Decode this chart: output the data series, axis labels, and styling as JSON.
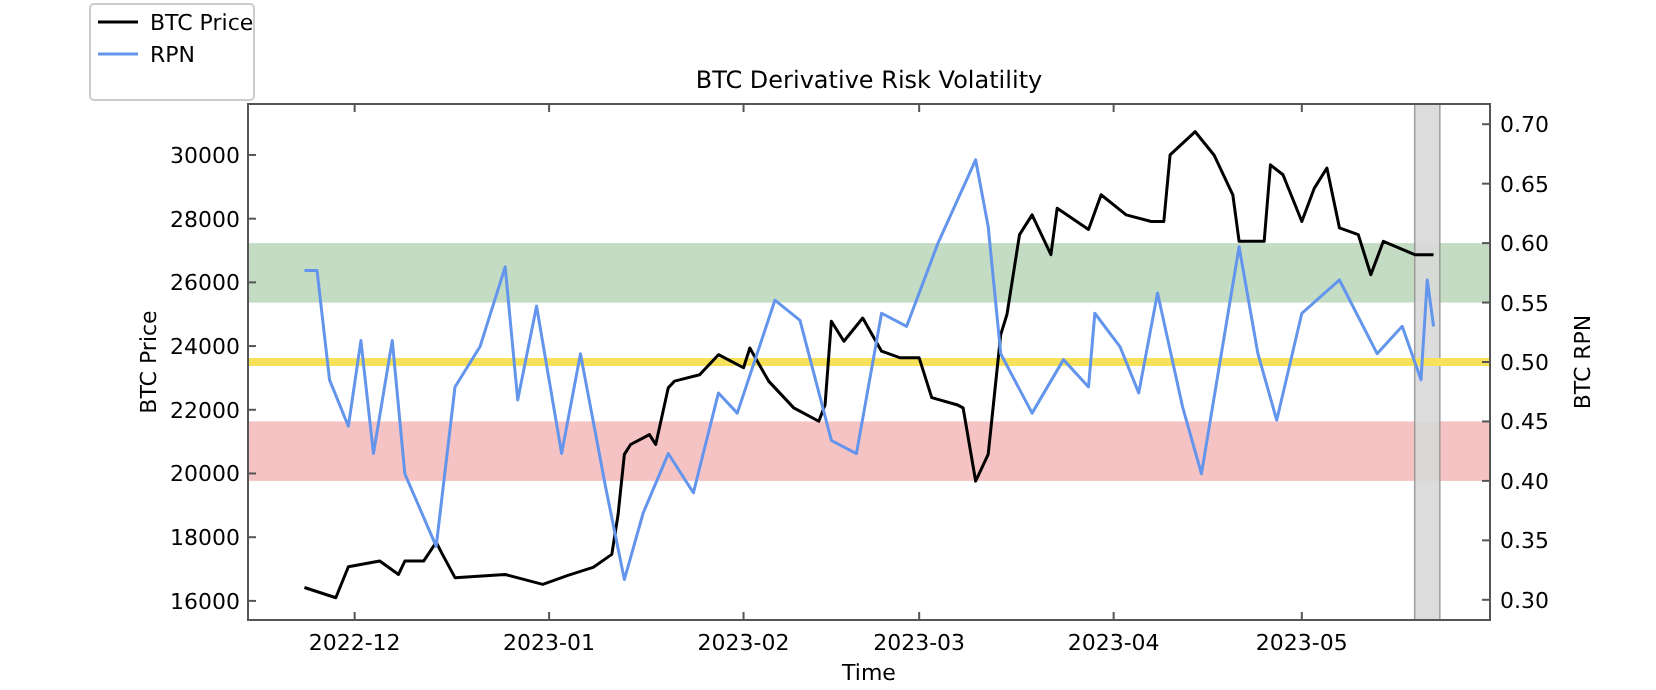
{
  "chart_data": {
    "type": "line",
    "title": "BTC Derivative Risk Volatility",
    "xlabel": "Time",
    "ylabel": "BTC Price",
    "y2label": "BTC RPN",
    "legend": "top left",
    "grid": false,
    "line_style": "solid",
    "xlim": [
      "2022-11-14",
      "2023-05-31"
    ],
    "xticks": [
      {
        "value": "2022-12-01",
        "label": "2022-12"
      },
      {
        "value": "2023-01-01",
        "label": "2023-01"
      },
      {
        "value": "2023-02-01",
        "label": "2023-02"
      },
      {
        "value": "2023-03-01",
        "label": "2023-03"
      },
      {
        "value": "2023-04-01",
        "label": "2023-04"
      },
      {
        "value": "2023-05-01",
        "label": "2023-05"
      }
    ],
    "ylim": [
      15400,
      31600
    ],
    "yticks": [
      16000,
      18000,
      20000,
      22000,
      24000,
      26000,
      28000,
      30000
    ],
    "y2lim": [
      0.283,
      0.717
    ],
    "y2ticks": [
      {
        "value": 0.3,
        "label": "0.30"
      },
      {
        "value": 0.35,
        "label": "0.35"
      },
      {
        "value": 0.4,
        "label": "0.40"
      },
      {
        "value": 0.45,
        "label": "0.45"
      },
      {
        "value": 0.5,
        "label": "0.50"
      },
      {
        "value": 0.55,
        "label": "0.55"
      },
      {
        "value": 0.6,
        "label": "0.60"
      },
      {
        "value": 0.65,
        "label": "0.65"
      },
      {
        "value": 0.7,
        "label": "0.70"
      }
    ],
    "bands": [
      {
        "axis": "y2",
        "from": 0.55,
        "to": 0.6,
        "color": "#c3dcc3"
      },
      {
        "axis": "y2",
        "from": 0.4,
        "to": 0.45,
        "color": "#f5c3c3"
      },
      {
        "axis": "x",
        "from": "2023-05-19",
        "to": "2023-05-23",
        "color": "#d9d9d9"
      }
    ],
    "ref_lines": [
      {
        "axis": "y2",
        "value": 0.5,
        "color": "#f7e05a"
      }
    ],
    "series": [
      {
        "name": "BTC Price",
        "color": "#000000",
        "x": [
          "2022-11-23",
          "2022-11-28",
          "2022-11-30",
          "2022-12-05",
          "2022-12-08",
          "2022-12-09",
          "2022-12-12",
          "2022-12-14",
          "2022-12-15",
          "2022-12-17",
          "2022-12-25",
          "2022-12-31",
          "2023-01-04",
          "2023-01-08",
          "2023-01-11",
          "2023-01-12",
          "2023-01-13",
          "2023-01-14",
          "2023-01-17",
          "2023-01-18",
          "2023-01-20",
          "2023-01-21",
          "2023-01-25",
          "2023-01-28",
          "2023-02-01",
          "2023-02-02",
          "2023-02-05",
          "2023-02-09",
          "2023-02-13",
          "2023-02-14",
          "2023-02-15",
          "2023-02-17",
          "2023-02-20",
          "2023-02-23",
          "2023-02-26",
          "2023-03-01",
          "2023-03-03",
          "2023-03-07",
          "2023-03-08",
          "2023-03-10",
          "2023-03-12",
          "2023-03-13",
          "2023-03-14",
          "2023-03-15",
          "2023-03-17",
          "2023-03-19",
          "2023-03-22",
          "2023-03-23",
          "2023-03-28",
          "2023-03-30",
          "2023-04-03",
          "2023-04-07",
          "2023-04-09",
          "2023-04-10",
          "2023-04-14",
          "2023-04-17",
          "2023-04-20",
          "2023-04-21",
          "2023-04-25",
          "2023-04-26",
          "2023-04-28",
          "2023-05-01",
          "2023-05-03",
          "2023-05-05",
          "2023-05-07",
          "2023-05-10",
          "2023-05-12",
          "2023-05-14",
          "2023-05-19",
          "2023-05-22"
        ],
        "values": [
          16420,
          16100,
          17070,
          17250,
          16830,
          17250,
          17250,
          17840,
          17460,
          16730,
          16830,
          16520,
          16800,
          17050,
          17460,
          18710,
          20600,
          20910,
          21220,
          20910,
          22690,
          22900,
          23100,
          23730,
          23320,
          23940,
          22900,
          22060,
          21640,
          22160,
          24780,
          24150,
          24880,
          23840,
          23630,
          23630,
          22380,
          22160,
          22060,
          19760,
          20600,
          22480,
          24360,
          25000,
          27500,
          28120,
          26870,
          28330,
          27660,
          28750,
          28120,
          27910,
          27910,
          30000,
          30730,
          30000,
          28750,
          27290,
          27290,
          29690,
          29380,
          27910,
          28960,
          29590,
          27710,
          27500,
          26240,
          27290,
          26870,
          26870
        ]
      },
      {
        "name": "RPN",
        "color": "#6495ed",
        "axis": "y2",
        "x": [
          "2022-11-23",
          "2022-11-25",
          "2022-11-27",
          "2022-11-30",
          "2022-12-02",
          "2022-12-04",
          "2022-12-07",
          "2022-12-09",
          "2022-12-14",
          "2022-12-17",
          "2022-12-21",
          "2022-12-25",
          "2022-12-27",
          "2022-12-30",
          "2023-01-03",
          "2023-01-06",
          "2023-01-10",
          "2023-01-13",
          "2023-01-16",
          "2023-01-20",
          "2023-01-24",
          "2023-01-28",
          "2023-01-31",
          "2023-02-06",
          "2023-02-10",
          "2023-02-15",
          "2023-02-19",
          "2023-02-23",
          "2023-02-27",
          "2023-03-04",
          "2023-03-10",
          "2023-03-12",
          "2023-03-14",
          "2023-03-19",
          "2023-03-24",
          "2023-03-28",
          "2023-03-29",
          "2023-04-02",
          "2023-04-05",
          "2023-04-08",
          "2023-04-12",
          "2023-04-15",
          "2023-04-21",
          "2023-04-24",
          "2023-04-27",
          "2023-05-01",
          "2023-05-07",
          "2023-05-13",
          "2023-05-17",
          "2023-05-20",
          "2023-05-21",
          "2023-05-22"
        ],
        "values": [
          0.577,
          0.577,
          0.485,
          0.446,
          0.518,
          0.423,
          0.518,
          0.406,
          0.345,
          0.479,
          0.513,
          0.58,
          0.468,
          0.547,
          0.423,
          0.507,
          0.395,
          0.317,
          0.373,
          0.423,
          0.39,
          0.474,
          0.457,
          0.552,
          0.535,
          0.434,
          0.423,
          0.541,
          0.53,
          0.6,
          0.67,
          0.614,
          0.507,
          0.457,
          0.502,
          0.479,
          0.541,
          0.513,
          0.474,
          0.558,
          0.462,
          0.406,
          0.597,
          0.507,
          0.451,
          0.541,
          0.569,
          0.507,
          0.53,
          0.485,
          0.569,
          0.53
        ]
      }
    ]
  }
}
